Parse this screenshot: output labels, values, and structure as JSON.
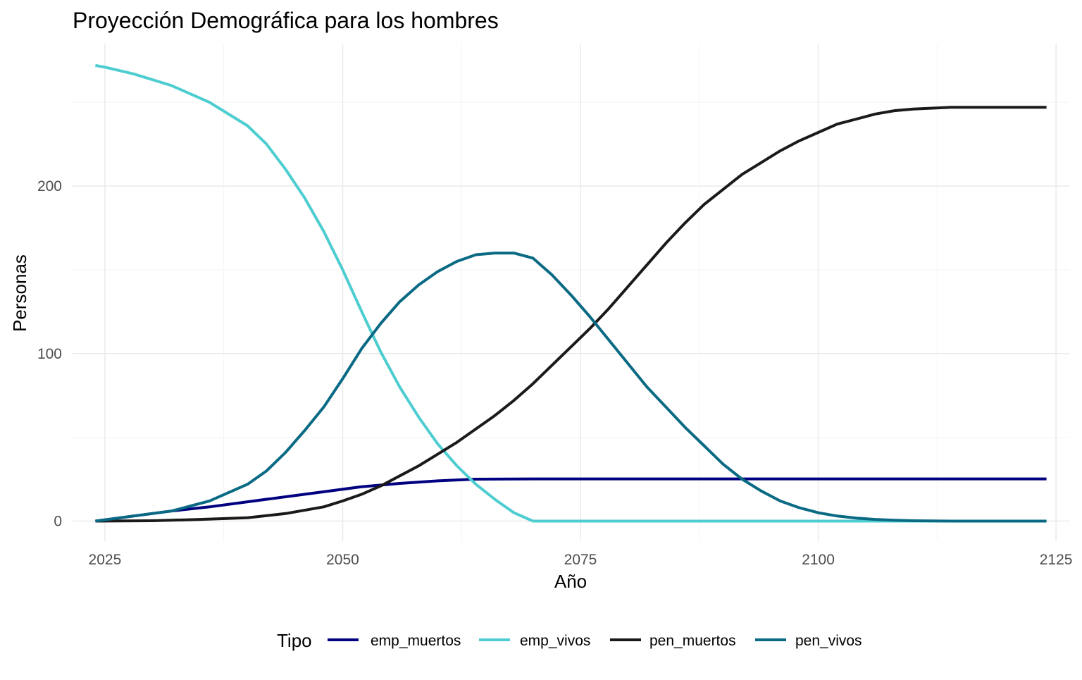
{
  "chart_data": {
    "type": "line",
    "title": "Proyección Demográfica para los hombres",
    "xlabel": "Año",
    "ylabel": "Personas",
    "xlim": [
      2021.6,
      2126.4
    ],
    "ylim": [
      -12,
      285
    ],
    "x_ticks": [
      2025,
      2050,
      2075,
      2100,
      2125
    ],
    "y_ticks": [
      0,
      100,
      200
    ],
    "grid": true,
    "legend": {
      "title": "Tipo",
      "position": "bottom"
    },
    "series": [
      {
        "name": "emp_muertos",
        "color": "#000080",
        "x": [
          2024,
          2028,
          2032,
          2036,
          2040,
          2044,
          2048,
          2052,
          2056,
          2060,
          2064,
          2070,
          2080,
          2090,
          2100,
          2110,
          2124
        ],
        "y": [
          0,
          3,
          6,
          8.5,
          11.5,
          14.5,
          17.5,
          20.5,
          22.5,
          24,
          25,
          25.2,
          25.2,
          25.2,
          25.2,
          25.2,
          25.2
        ]
      },
      {
        "name": "emp_vivos",
        "color": "#4ecdd0",
        "x": [
          2024,
          2025,
          2028,
          2032,
          2036,
          2040,
          2042,
          2044,
          2046,
          2048,
          2050,
          2052,
          2054,
          2056,
          2058,
          2060,
          2062,
          2064,
          2066,
          2068,
          2070,
          2075,
          2085,
          2100,
          2124
        ],
        "y": [
          272,
          271,
          267,
          260,
          250,
          236,
          225,
          210,
          193,
          173,
          150,
          125,
          101,
          80,
          62,
          46,
          33,
          22,
          13,
          5,
          0,
          0,
          0,
          0,
          0
        ]
      },
      {
        "name": "pen_muertos",
        "color": "#1a1a1a",
        "x": [
          2024,
          2030,
          2035,
          2040,
          2044,
          2048,
          2050,
          2052,
          2054,
          2056,
          2058,
          2060,
          2062,
          2064,
          2066,
          2068,
          2070,
          2072,
          2074,
          2076,
          2078,
          2080,
          2082,
          2084,
          2086,
          2088,
          2090,
          2092,
          2094,
          2096,
          2098,
          2100,
          2102,
          2104,
          2106,
          2108,
          2110,
          2114,
          2118,
          2124
        ],
        "y": [
          0,
          0.2,
          1,
          2,
          4.5,
          8.5,
          12,
          16,
          21,
          27,
          33,
          40,
          47,
          55,
          63,
          72,
          82,
          93,
          104,
          115,
          127,
          140,
          153,
          166,
          178,
          189,
          198,
          207,
          214,
          221,
          227,
          232,
          237,
          240,
          243,
          245,
          246,
          247,
          247,
          247
        ]
      },
      {
        "name": "pen_vivos",
        "color": "#0a6a84",
        "x": [
          2024,
          2028,
          2032,
          2034,
          2036,
          2038,
          2040,
          2042,
          2044,
          2046,
          2048,
          2050,
          2052,
          2054,
          2056,
          2058,
          2060,
          2062,
          2064,
          2066,
          2068,
          2070,
          2072,
          2074,
          2076,
          2078,
          2080,
          2082,
          2084,
          2086,
          2088,
          2090,
          2092,
          2094,
          2096,
          2098,
          2100,
          2102,
          2104,
          2106,
          2108,
          2110,
          2114,
          2118,
          2124
        ],
        "y": [
          0,
          3,
          6,
          9,
          12,
          17,
          22,
          30,
          41,
          54,
          68,
          85,
          103,
          118,
          131,
          141,
          149,
          155,
          159,
          160,
          160,
          157,
          147,
          135,
          122,
          108,
          94,
          80,
          68,
          56,
          45,
          34,
          25,
          18,
          12,
          8,
          5,
          3,
          1.8,
          1,
          0.5,
          0.2,
          0,
          0,
          0
        ]
      }
    ]
  }
}
